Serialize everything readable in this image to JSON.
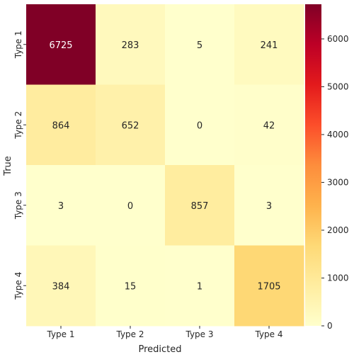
{
  "chart_data": {
    "type": "heatmap",
    "title": "",
    "xlabel": "Predicted",
    "ylabel": "True",
    "x_categories": [
      "Type 1",
      "Type 2",
      "Type 3",
      "Type 4"
    ],
    "y_categories": [
      "Type 1",
      "Type 2",
      "Type 3",
      "Type 4"
    ],
    "values": [
      [
        6725,
        283,
        5,
        241
      ],
      [
        864,
        652,
        0,
        42
      ],
      [
        3,
        0,
        857,
        3
      ],
      [
        384,
        15,
        1,
        1705
      ]
    ],
    "colorbar": {
      "min": 0,
      "max": 6725,
      "ticks": [
        0,
        1000,
        2000,
        3000,
        4000,
        5000,
        6000
      ],
      "tick_labels": [
        "0",
        "1000",
        "2000",
        "3000",
        "4000",
        "5000",
        "6000"
      ],
      "colormap": "YlOrRd",
      "colors": [
        "#ffffcc",
        "#ffeda0",
        "#fed976",
        "#feb24c",
        "#fd8d3c",
        "#fc4e2a",
        "#e31a1c",
        "#bd0026",
        "#800026"
      ]
    },
    "grid": false,
    "legend": "colorbar-right"
  }
}
